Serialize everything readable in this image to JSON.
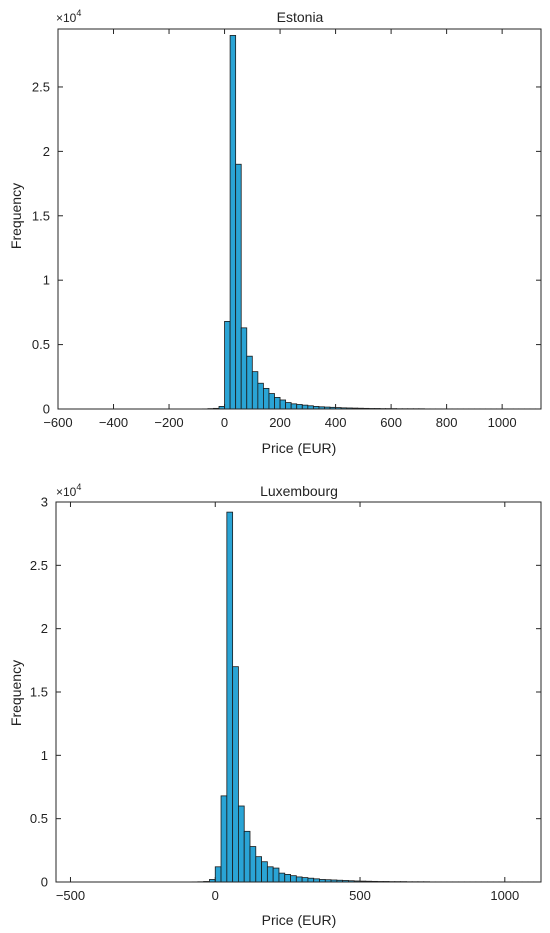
{
  "chart_data": [
    {
      "type": "bar",
      "title": "Estonia",
      "xlabel": "Price (EUR)",
      "ylabel": "Frequency",
      "y_exponent_label": "×10",
      "y_exponent": "4",
      "xlim": [
        -600,
        1140
      ],
      "ylim": [
        0,
        2.95
      ],
      "xticks": [
        -600,
        -400,
        -200,
        0,
        200,
        400,
        600,
        800,
        1000
      ],
      "xtick_labels": [
        "−600",
        "−400",
        "−200",
        "0",
        "200",
        "400",
        "600",
        "800",
        "1000"
      ],
      "yticks": [
        0,
        0.5,
        1,
        1.5,
        2,
        2.5
      ],
      "ytick_labels": [
        "0",
        "0.5",
        "1",
        "1.5",
        "2",
        "2.5"
      ],
      "bin_start": -80,
      "bin_width": 20,
      "values_scaled_1e4": [
        0.001,
        0.003,
        0.005,
        0.02,
        0.68,
        2.9,
        1.9,
        0.63,
        0.41,
        0.29,
        0.2,
        0.16,
        0.12,
        0.09,
        0.07,
        0.05,
        0.04,
        0.035,
        0.03,
        0.025,
        0.02,
        0.017,
        0.015,
        0.013,
        0.011,
        0.009,
        0.008,
        0.007,
        0.006,
        0.005,
        0.004,
        0.004,
        0.003,
        0.003,
        0.003,
        0.002,
        0.002,
        0.002,
        0.002,
        0.002,
        0.001,
        0.001,
        0.001,
        0.001,
        0.001,
        0.001,
        0.001,
        0.001,
        0.001,
        0.001,
        0.001,
        0.001,
        0.001,
        0.001,
        0.001,
        0.001,
        0.001,
        0.001,
        0.001,
        0.001,
        0.001
      ],
      "bar_color": "#2aa4d5",
      "grid": false,
      "legend": "none"
    },
    {
      "type": "bar",
      "title": "Luxembourg",
      "xlabel": "Price (EUR)",
      "ylabel": "Frequency",
      "y_exponent_label": "×10",
      "y_exponent": "4",
      "xlim": [
        -550,
        1125
      ],
      "ylim": [
        0,
        3
      ],
      "xticks": [
        -500,
        0,
        500,
        1000
      ],
      "xtick_labels": [
        "−500",
        "0",
        "500",
        "1000"
      ],
      "yticks": [
        0,
        0.5,
        1,
        1.5,
        2,
        2.5,
        3
      ],
      "ytick_labels": [
        "0",
        "0.5",
        "1",
        "1.5",
        "2",
        "2.5",
        "3"
      ],
      "bin_start": -80,
      "bin_width": 20,
      "values_scaled_1e4": [
        0.001,
        0.002,
        0.004,
        0.02,
        0.12,
        0.68,
        2.92,
        1.7,
        0.6,
        0.4,
        0.28,
        0.2,
        0.16,
        0.12,
        0.11,
        0.07,
        0.06,
        0.05,
        0.04,
        0.035,
        0.03,
        0.025,
        0.02,
        0.018,
        0.016,
        0.014,
        0.012,
        0.01,
        0.008,
        0.007,
        0.006,
        0.005,
        0.004,
        0.004,
        0.003,
        0.003,
        0.003,
        0.002,
        0.002,
        0.002,
        0.002,
        0.001,
        0.001,
        0.001,
        0.001,
        0.001,
        0.001,
        0.001,
        0.001,
        0.001,
        0.001,
        0.001,
        0.001,
        0.001,
        0.001,
        0.001,
        0.001,
        0.001,
        0.001,
        0.001
      ],
      "bar_color": "#2aa4d5",
      "grid": false,
      "legend": "none"
    }
  ]
}
